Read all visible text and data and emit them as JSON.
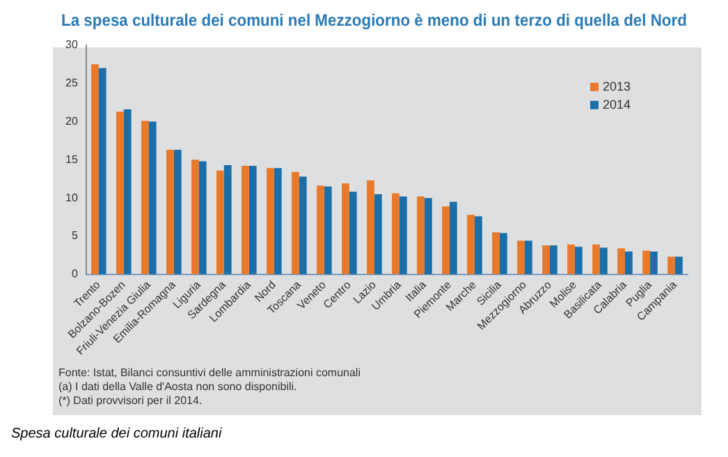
{
  "chart_data": {
    "type": "bar",
    "title": "La spesa culturale dei comuni nel Mezzogiorno è meno di un terzo di quella del Nord",
    "categories": [
      "Trento",
      "Bolzano-Bozen",
      "Friuli-Venezia Giulia",
      "Emilia-Romagna",
      "Liguria",
      "Sardegna",
      "Lombardia",
      "Nord",
      "Toscana",
      "Veneto",
      "Centro",
      "Lazio",
      "Umbria",
      "Italia",
      "Piemonte",
      "Marche",
      "Sicilia",
      "Mezzogiorno",
      "Abruzzo",
      "Molise",
      "Basilicata",
      "Calabria",
      "Puglia",
      "Campania"
    ],
    "series": [
      {
        "name": "2013",
        "color": "#e8792a",
        "values": [
          27.5,
          21.3,
          20.1,
          16.3,
          15.0,
          13.6,
          14.2,
          13.9,
          13.4,
          11.6,
          11.9,
          12.3,
          10.6,
          10.2,
          8.9,
          7.8,
          5.5,
          4.4,
          3.8,
          3.9,
          3.9,
          3.4,
          3.1,
          2.3
        ]
      },
      {
        "name": "2014",
        "color": "#1a6fa8",
        "values": [
          27.0,
          21.6,
          20.0,
          16.3,
          14.8,
          14.3,
          14.2,
          13.9,
          12.8,
          11.5,
          10.8,
          10.5,
          10.2,
          10.0,
          9.5,
          7.6,
          5.4,
          4.4,
          3.8,
          3.6,
          3.5,
          3.0,
          3.0,
          2.3
        ]
      }
    ],
    "ylim": [
      0,
      30
    ],
    "yticks": [
      0,
      5,
      10,
      15,
      20,
      25,
      30
    ],
    "grid": false,
    "legend": "top right",
    "annotations": [
      "Fonte: Istat, Bilanci consuntivi delle amministrazioni comunali",
      "(a) I dati della Valle d'Aosta non sono disponibili.",
      "(*) Dati provvisori per il 2014.",
      "Spesa culturale dei comuni italiani"
    ]
  }
}
